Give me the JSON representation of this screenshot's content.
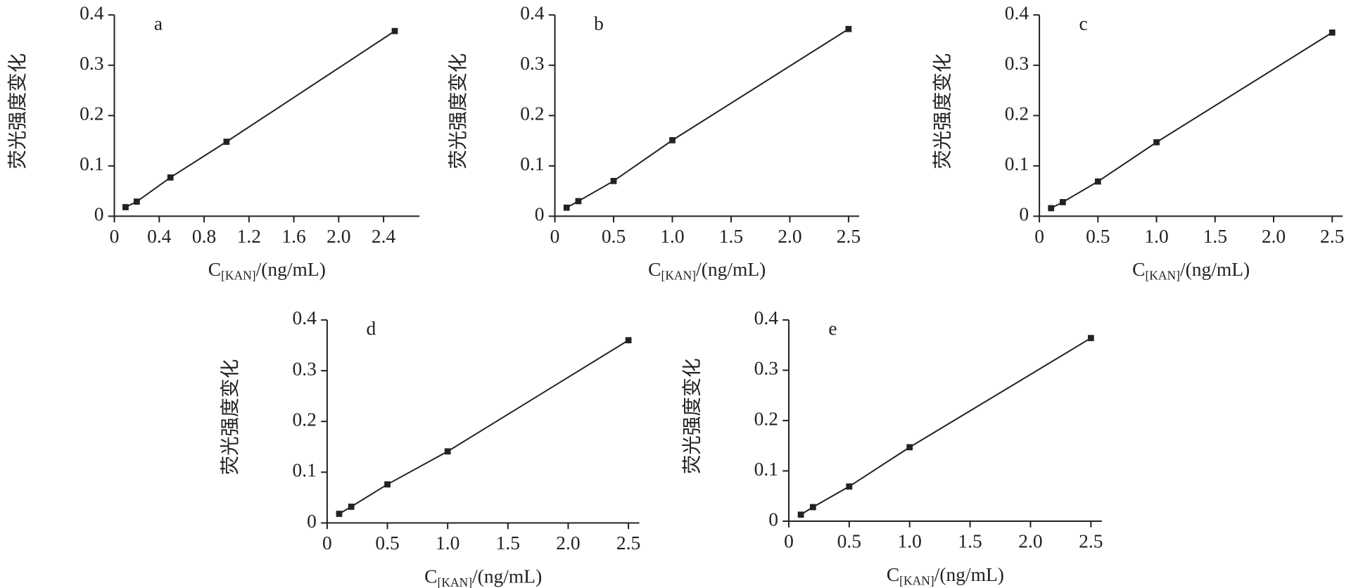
{
  "chart_data": [
    {
      "type": "line",
      "annotation": "a",
      "y_label": "荧光强度变化",
      "x_label": {
        "main": "C",
        "sub": "[KAN]",
        "rest": "/(ng/mL)"
      },
      "x": [
        0.1,
        0.2,
        0.5,
        1.0,
        2.5
      ],
      "series": [
        {
          "color": "#222222",
          "values": [
            0.018,
            0.029,
            0.077,
            0.148,
            0.368
          ]
        }
      ],
      "xlim": [
        0,
        2.72
      ],
      "xticks": [
        0,
        0.4,
        0.8,
        1.2,
        1.6,
        {
          "value": 2,
          "label": "2.0"
        },
        2.4
      ],
      "ylim": [
        0,
        0.4
      ],
      "yticks": [
        0,
        0.1,
        0.2,
        0.3,
        0.4
      ]
    },
    {
      "type": "line",
      "annotation": "b",
      "y_label": "荧光强度变化",
      "x_label": {
        "main": "C",
        "sub": "[KAN]",
        "rest": "/(ng/mL)"
      },
      "x": [
        0.1,
        0.2,
        0.5,
        1.0,
        2.5
      ],
      "series": [
        {
          "color": "#222222",
          "values": [
            0.017,
            0.03,
            0.07,
            0.151,
            0.372
          ]
        }
      ],
      "xlim": [
        0,
        2.59
      ],
      "xticks": [
        0,
        0.5,
        {
          "value": 1,
          "label": "1.0"
        },
        1.5,
        {
          "value": 2,
          "label": "2.0"
        },
        2.5
      ],
      "ylim": [
        0,
        0.4
      ],
      "yticks": [
        0,
        0.1,
        0.2,
        0.3,
        0.4
      ]
    },
    {
      "type": "line",
      "annotation": "c",
      "y_label": "荧光强度变化",
      "x_label": {
        "main": "C",
        "sub": "[KAN]",
        "rest": "/(ng/mL)"
      },
      "x": [
        0.1,
        0.2,
        0.5,
        1.0,
        2.5
      ],
      "series": [
        {
          "color": "#222222",
          "values": [
            0.016,
            0.028,
            0.069,
            0.147,
            0.365
          ]
        }
      ],
      "xlim": [
        0,
        2.59
      ],
      "xticks": [
        0,
        0.5,
        {
          "value": 1,
          "label": "1.0"
        },
        1.5,
        {
          "value": 2,
          "label": "2.0"
        },
        2.5
      ],
      "ylim": [
        0,
        0.4
      ],
      "yticks": [
        0,
        0.1,
        0.2,
        0.3,
        0.4
      ]
    },
    {
      "type": "line",
      "annotation": "d",
      "y_label": "荧光强度变化",
      "x_label": {
        "main": "C",
        "sub": "[KAN]",
        "rest": "/(ng/mL)"
      },
      "x": [
        0.1,
        0.2,
        0.5,
        1.0,
        2.5
      ],
      "series": [
        {
          "color": "#222222",
          "values": [
            0.018,
            0.032,
            0.076,
            0.141,
            0.36
          ]
        }
      ],
      "xlim": [
        0,
        2.59
      ],
      "xticks": [
        0,
        0.5,
        {
          "value": 1,
          "label": "1.0"
        },
        1.5,
        {
          "value": 2,
          "label": "2.0"
        },
        2.5
      ],
      "ylim": [
        0,
        0.4
      ],
      "yticks": [
        0,
        0.1,
        0.2,
        0.3,
        0.4
      ]
    },
    {
      "type": "line",
      "annotation": "e",
      "y_label": "荧光强度变化",
      "x_label": {
        "main": "C",
        "sub": "[KAN]",
        "rest": "/(ng/mL)"
      },
      "x": [
        0.1,
        0.2,
        0.5,
        1.0,
        2.5
      ],
      "series": [
        {
          "color": "#222222",
          "values": [
            0.013,
            0.028,
            0.069,
            0.147,
            0.364
          ]
        }
      ],
      "xlim": [
        0,
        2.59
      ],
      "xticks": [
        0,
        0.5,
        {
          "value": 1,
          "label": "1.0"
        },
        1.5,
        {
          "value": 2,
          "label": "2.0"
        },
        2.5
      ],
      "ylim": [
        0,
        0.4
      ],
      "yticks": [
        0,
        0.1,
        0.2,
        0.3,
        0.4
      ]
    }
  ]
}
